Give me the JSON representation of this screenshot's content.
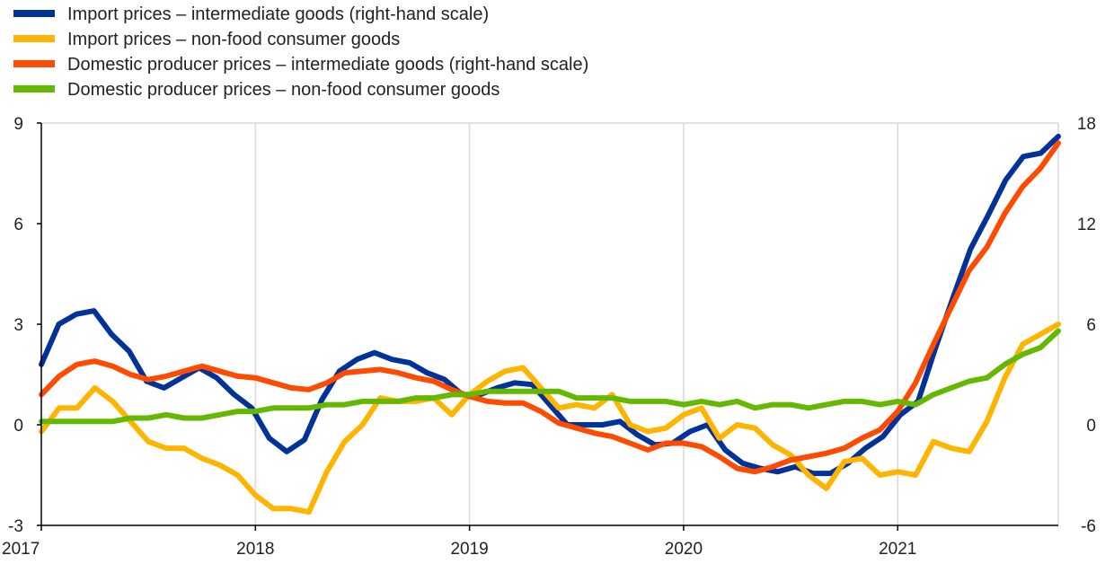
{
  "chart_data": {
    "type": "line",
    "title": "",
    "xlabel": "",
    "ylabel": "",
    "grid": "vertical at year boundaries",
    "legend_position": "top-left",
    "x_ticks": [
      "2017",
      "2018",
      "2019",
      "2020",
      "2021"
    ],
    "x_range": [
      2017,
      2021.75
    ],
    "left_axis": {
      "ylim": [
        -3,
        9
      ],
      "ticks": [
        "-3",
        "0",
        "3",
        "6",
        "9"
      ]
    },
    "right_axis": {
      "ylim": [
        -6,
        18
      ],
      "ticks": [
        "-6",
        "0",
        "6",
        "12",
        "18"
      ]
    },
    "series": [
      {
        "name": "Import prices – intermediate goods (right-hand scale)",
        "axis": "right",
        "color": "#003299",
        "values": [
          3.6,
          6.0,
          6.6,
          6.8,
          5.4,
          4.4,
          2.6,
          2.2,
          2.8,
          3.4,
          2.8,
          1.8,
          1.0,
          -0.8,
          -1.6,
          -0.9,
          1.5,
          3.2,
          3.9,
          4.3,
          3.9,
          3.7,
          3.1,
          2.7,
          1.8,
          1.8,
          2.2,
          2.5,
          2.4,
          1.2,
          0.0,
          0.0,
          0.0,
          0.2,
          -0.6,
          -1.2,
          -1.1,
          -0.4,
          0.0,
          -1.5,
          -2.3,
          -2.6,
          -2.8,
          -2.5,
          -2.9,
          -2.9,
          -2.3,
          -1.4,
          -0.7,
          0.6,
          1.4,
          4.6,
          7.6,
          10.5,
          12.5,
          14.6,
          16.0,
          16.2,
          17.2
        ]
      },
      {
        "name": "Import prices – non-food consumer goods",
        "axis": "left",
        "color": "#FFB400",
        "values": [
          -0.2,
          0.5,
          0.5,
          1.1,
          0.7,
          0.1,
          -0.5,
          -0.7,
          -0.7,
          -1.0,
          -1.2,
          -1.5,
          -2.1,
          -2.5,
          -2.5,
          -2.6,
          -1.4,
          -0.5,
          0.0,
          0.8,
          0.7,
          0.7,
          0.8,
          0.3,
          0.9,
          1.3,
          1.6,
          1.7,
          1.1,
          0.5,
          0.6,
          0.5,
          0.9,
          0.0,
          -0.2,
          -0.1,
          0.3,
          0.5,
          -0.4,
          0.0,
          -0.1,
          -0.6,
          -0.9,
          -1.5,
          -1.9,
          -1.1,
          -1.0,
          -1.5,
          -1.4,
          -1.5,
          -0.5,
          -0.7,
          -0.8,
          0.1,
          1.4,
          2.4,
          2.7,
          3.0
        ]
      },
      {
        "name": "Domestic producer prices – intermediate goods (right-hand scale)",
        "axis": "right",
        "color": "#FF4B00",
        "values": [
          1.8,
          2.9,
          3.6,
          3.8,
          3.5,
          3.0,
          2.7,
          2.9,
          3.2,
          3.5,
          3.2,
          2.9,
          2.8,
          2.5,
          2.2,
          2.1,
          2.5,
          3.1,
          3.2,
          3.3,
          3.1,
          2.8,
          2.6,
          2.1,
          1.7,
          1.4,
          1.3,
          1.3,
          0.8,
          0.1,
          -0.2,
          -0.5,
          -0.7,
          -1.1,
          -1.5,
          -1.1,
          -1.1,
          -1.3,
          -1.9,
          -2.6,
          -2.8,
          -2.5,
          -2.1,
          -1.9,
          -1.7,
          -1.4,
          -0.8,
          -0.3,
          0.8,
          2.5,
          4.8,
          7.0,
          9.2,
          10.6,
          12.6,
          14.2,
          15.3,
          16.8
        ]
      },
      {
        "name": "Domestic producer prices – non-food consumer goods",
        "axis": "left",
        "color": "#65B800",
        "values": [
          0.1,
          0.1,
          0.1,
          0.1,
          0.1,
          0.2,
          0.2,
          0.3,
          0.2,
          0.2,
          0.3,
          0.4,
          0.4,
          0.5,
          0.5,
          0.5,
          0.6,
          0.6,
          0.7,
          0.7,
          0.7,
          0.8,
          0.8,
          0.9,
          0.9,
          1.0,
          1.0,
          1.0,
          1.0,
          1.0,
          0.8,
          0.8,
          0.8,
          0.7,
          0.7,
          0.7,
          0.6,
          0.7,
          0.6,
          0.7,
          0.5,
          0.6,
          0.6,
          0.5,
          0.6,
          0.7,
          0.7,
          0.6,
          0.7,
          0.6,
          0.9,
          1.1,
          1.3,
          1.4,
          1.8,
          2.1,
          2.3,
          2.8
        ]
      }
    ]
  }
}
